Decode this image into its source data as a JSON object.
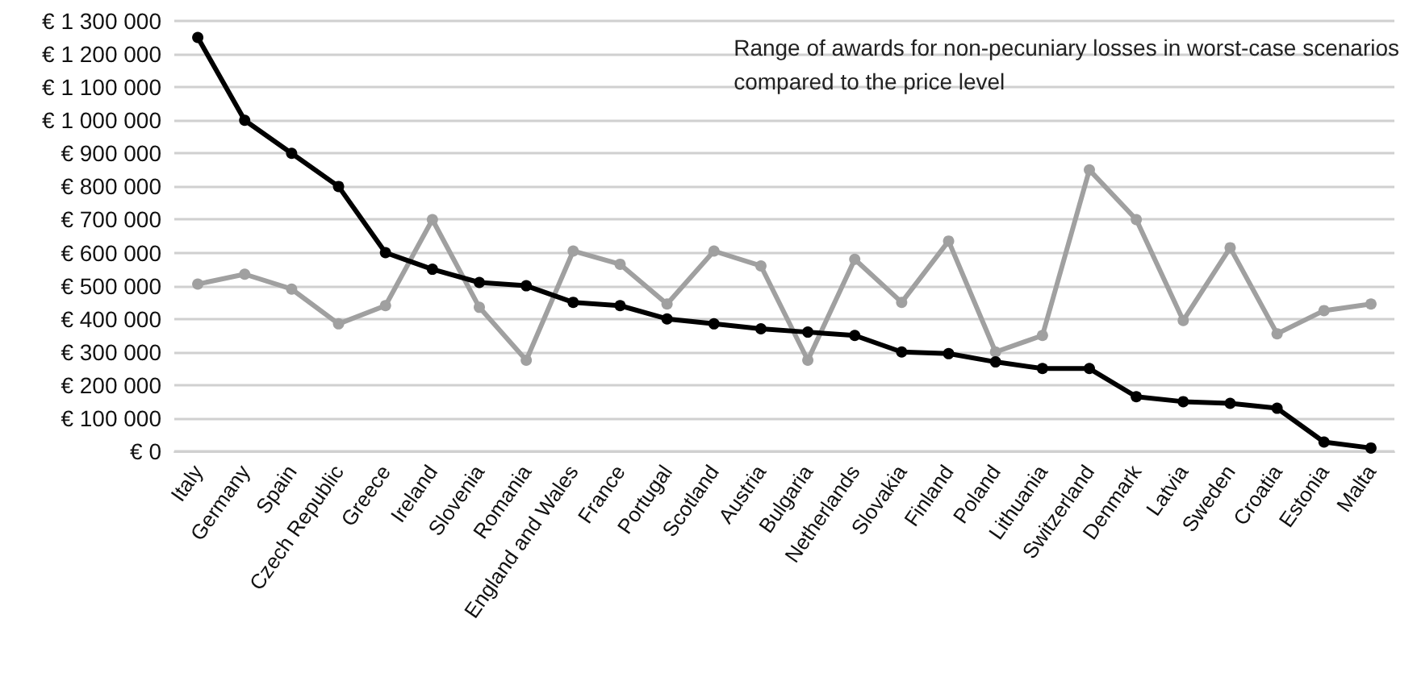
{
  "chart_data": {
    "type": "line",
    "title": "Range of awards for non-pecuniary losses in worst-case scenarios\ncompared to the price level",
    "categories": [
      "Italy",
      "Germany",
      "Spain",
      "Czech Republic",
      "Greece",
      "Ireland",
      "Slovenia",
      "Romania",
      "England and Wales",
      "France",
      "Portugal",
      "Scotland",
      "Austria",
      "Bulgaria",
      "Netherlands",
      "Slovakia",
      "Finland",
      "Poland",
      "Lithuania",
      "Switzerland",
      "Denmark",
      "Latvia",
      "Sweden",
      "Croatia",
      "Estonia",
      "Malta"
    ],
    "series": [
      {
        "color": "#000000",
        "values": [
          1250000,
          1000000,
          900000,
          800000,
          600000,
          550000,
          510000,
          500000,
          450000,
          440000,
          400000,
          385000,
          370000,
          360000,
          350000,
          300000,
          295000,
          270000,
          250000,
          250000,
          165000,
          150000,
          145000,
          130000,
          28000,
          10000
        ]
      },
      {
        "color": "#a0a0a0",
        "values": [
          505000,
          535000,
          490000,
          385000,
          440000,
          700000,
          435000,
          275000,
          605000,
          565000,
          445000,
          605000,
          560000,
          275000,
          580000,
          450000,
          635000,
          300000,
          350000,
          850000,
          700000,
          395000,
          615000,
          355000,
          425000,
          445000
        ]
      }
    ],
    "ylim": [
      0,
      1300000
    ],
    "yticks": [
      {
        "value": 0,
        "label": "€ 0"
      },
      {
        "value": 100000,
        "label": "€ 100 000"
      },
      {
        "value": 200000,
        "label": "€ 200 000"
      },
      {
        "value": 300000,
        "label": "€ 300 000"
      },
      {
        "value": 400000,
        "label": "€ 400 000"
      },
      {
        "value": 500000,
        "label": "€ 500 000"
      },
      {
        "value": 600000,
        "label": "€ 600 000"
      },
      {
        "value": 700000,
        "label": "€ 700 000"
      },
      {
        "value": 800000,
        "label": "€ 800 000"
      },
      {
        "value": 900000,
        "label": "€ 900 000"
      },
      {
        "value": 1000000,
        "label": "€ 1 000 000"
      },
      {
        "value": 1100000,
        "label": "€ 1 100 000"
      },
      {
        "value": 1200000,
        "label": "€ 1 200 000"
      },
      {
        "value": 1300000,
        "label": "€ 1 300 000"
      }
    ],
    "grid": "y",
    "marker": "circle",
    "line_style": "solid"
  }
}
